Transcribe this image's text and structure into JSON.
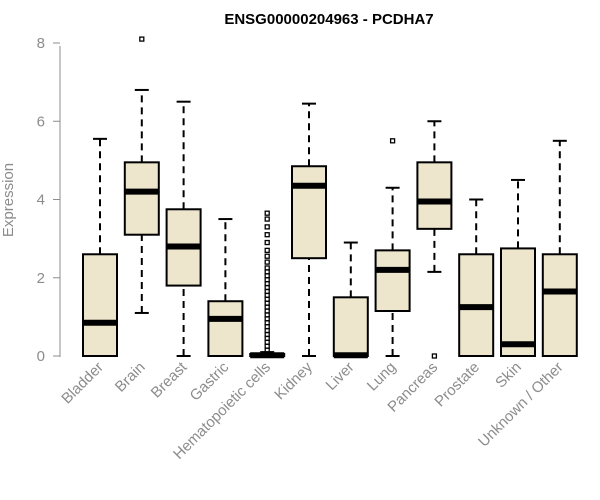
{
  "chart_data": {
    "type": "boxplot",
    "title": "ENSG00000204963 - PCDHA7",
    "xlabel": "",
    "ylabel": "Expression",
    "ylim": [
      0,
      8.3
    ],
    "yticks": [
      0,
      2,
      4,
      6,
      8
    ],
    "box_fill": "#ede6cc",
    "categories": [
      "Bladder",
      "Brain",
      "Breast",
      "Gastric",
      "Hematopoietic cells",
      "Kidney",
      "Liver",
      "Lung",
      "Pancreas",
      "Prostate",
      "Skin",
      "Unknown / Other"
    ],
    "boxes": [
      {
        "min": 0,
        "q1": 0,
        "median": 0.85,
        "q3": 2.6,
        "max": 5.55,
        "outliers": []
      },
      {
        "min": 1.1,
        "q1": 3.1,
        "median": 4.2,
        "q3": 4.95,
        "max": 6.8,
        "outliers": [
          8.1
        ]
      },
      {
        "min": 0,
        "q1": 1.8,
        "median": 2.8,
        "q3": 3.75,
        "max": 6.5,
        "outliers": []
      },
      {
        "min": 0,
        "q1": 0,
        "median": 0.95,
        "q3": 1.4,
        "max": 3.5,
        "outliers": []
      },
      {
        "min": 0,
        "q1": 0,
        "median": 0.02,
        "q3": 0.05,
        "max": 0.1,
        "outliers": [
          0.15,
          0.25,
          0.35,
          0.45,
          0.55,
          0.65,
          0.75,
          0.85,
          0.95,
          1.05,
          1.15,
          1.25,
          1.35,
          1.45,
          1.55,
          1.65,
          1.75,
          1.85,
          1.95,
          2.05,
          2.15,
          2.25,
          2.4,
          2.55,
          2.7,
          2.9,
          3.1,
          3.3,
          3.5,
          3.65
        ]
      },
      {
        "min": 0,
        "q1": 2.5,
        "median": 4.35,
        "q3": 4.85,
        "max": 6.45,
        "outliers": []
      },
      {
        "min": 0,
        "q1": 0,
        "median": 0.02,
        "q3": 1.5,
        "max": 2.9,
        "outliers": []
      },
      {
        "min": 0,
        "q1": 1.15,
        "median": 2.2,
        "q3": 2.7,
        "max": 4.3,
        "outliers": [
          5.5
        ]
      },
      {
        "min": 2.15,
        "q1": 3.25,
        "median": 3.95,
        "q3": 4.95,
        "max": 6.0,
        "outliers": [
          0.0
        ]
      },
      {
        "min": 0,
        "q1": 0,
        "median": 1.25,
        "q3": 2.6,
        "max": 4.0,
        "outliers": []
      },
      {
        "min": 0,
        "q1": 0,
        "median": 0.3,
        "q3": 2.75,
        "max": 4.5,
        "outliers": []
      },
      {
        "min": 0,
        "q1": 0,
        "median": 1.65,
        "q3": 2.6,
        "max": 5.5,
        "outliers": []
      }
    ]
  }
}
